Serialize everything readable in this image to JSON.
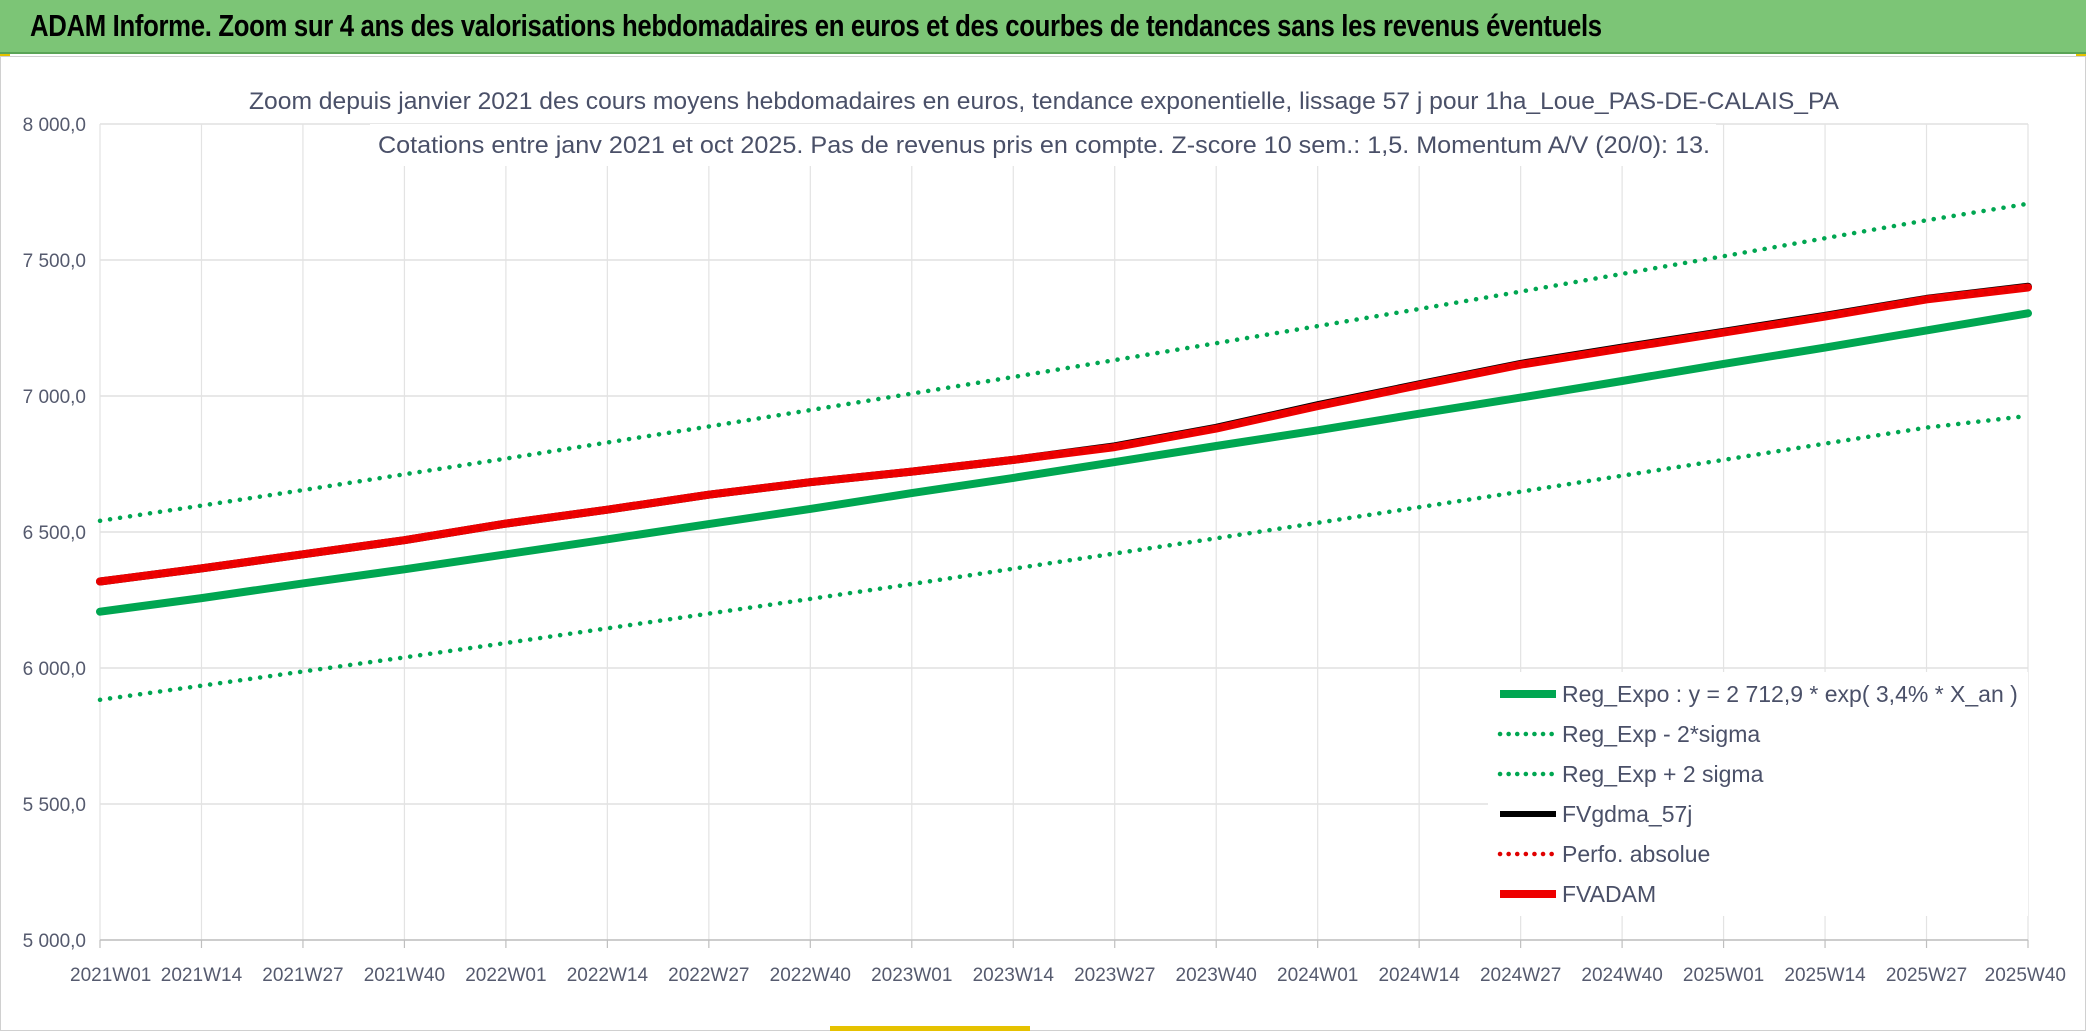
{
  "banner": {
    "title": "ADAM Informe. Zoom sur 4 ans des valorisations hebdomadaires en euros et des courbes de tendances sans les revenus éventuels"
  },
  "chart_data": {
    "type": "line",
    "title_line1": "Zoom depuis janvier 2021 des cours moyens hebdomadaires en euros, tendance exponentielle, lissage 57 j pour 1ha_Loue_PAS-DE-CALAIS_PA",
    "title_line2": "Cotations entre janv 2021 et oct 2025. Pas de revenus pris en compte. Z-score 10 sem.: 1,5. Momentum A/V (20/0): 13.",
    "xlabel": "",
    "ylabel": "",
    "ylim": [
      5000,
      8000
    ],
    "yticks": [
      "5 000,0",
      "5 500,0",
      "6 000,0",
      "6 500,0",
      "7 000,0",
      "7 500,0",
      "8 000,0"
    ],
    "ytick_values": [
      5000,
      5500,
      6000,
      6500,
      7000,
      7500,
      8000
    ],
    "xticks": [
      "2021W01",
      "2021W14",
      "2021W27",
      "2021W40",
      "2022W01",
      "2022W14",
      "2022W27",
      "2022W40",
      "2023W01",
      "2023W14",
      "2023W27",
      "2023W40",
      "2024W01",
      "2024W14",
      "2024W27",
      "2024W40",
      "2025W01",
      "2025W14",
      "2025W27",
      "2025W40"
    ],
    "grid": true,
    "legend_position": "bottom-right",
    "series": [
      {
        "name": "Reg_Expo : y = 2 712,9 * exp( 3,4% *  X_an )",
        "color": "#00a651",
        "style": "solid",
        "weight": "thick",
        "values": [
          6207,
          6257,
          6311,
          6363,
          6418,
          6473,
          6529,
          6585,
          6643,
          6699,
          6757,
          6816,
          6874,
          6935,
          6994,
          7055,
          7118,
          7178,
          7241,
          7304
        ]
      },
      {
        "name": "Reg_Exp - 2*sigma",
        "color": "#00a651",
        "style": "dotted",
        "weight": "normal",
        "values": [
          5883,
          5935,
          5987,
          6039,
          6092,
          6146,
          6200,
          6254,
          6309,
          6365,
          6421,
          6477,
          6534,
          6591,
          6648,
          6707,
          6765,
          6825,
          6884,
          6927
        ]
      },
      {
        "name": "Reg_Exp + 2 sigma",
        "color": "#00a651",
        "style": "dotted",
        "weight": "normal",
        "values": [
          6541,
          6597,
          6654,
          6712,
          6770,
          6829,
          6888,
          6948,
          7009,
          7070,
          7132,
          7194,
          7257,
          7320,
          7384,
          7449,
          7514,
          7580,
          7646,
          7707
        ]
      },
      {
        "name": "FVgdma_57j",
        "color": "#000000",
        "style": "solid",
        "weight": "normal",
        "values": [
          6318,
          6366,
          6418,
          6470,
          6531,
          6582,
          6637,
          6683,
          6722,
          6765,
          6815,
          6883,
          6966,
          7043,
          7118,
          7178,
          7236,
          7295,
          7357,
          7402
        ]
      },
      {
        "name": "Perfo. absolue",
        "color": "#e00000",
        "style": "dotted",
        "weight": "normal",
        "values": [
          6318,
          6366,
          6418,
          6470,
          6531,
          6582,
          6637,
          6683,
          6722,
          6765,
          6812,
          6880,
          6963,
          7040,
          7115,
          7175,
          7233,
          7292,
          7355,
          7399
        ]
      },
      {
        "name": "FVADAM",
        "color": "#ee0000",
        "style": "solid",
        "weight": "thick",
        "values": [
          6318,
          6366,
          6418,
          6470,
          6531,
          6582,
          6637,
          6683,
          6722,
          6765,
          6812,
          6880,
          6963,
          7040,
          7115,
          7175,
          7233,
          7292,
          7355,
          7399
        ]
      }
    ]
  }
}
